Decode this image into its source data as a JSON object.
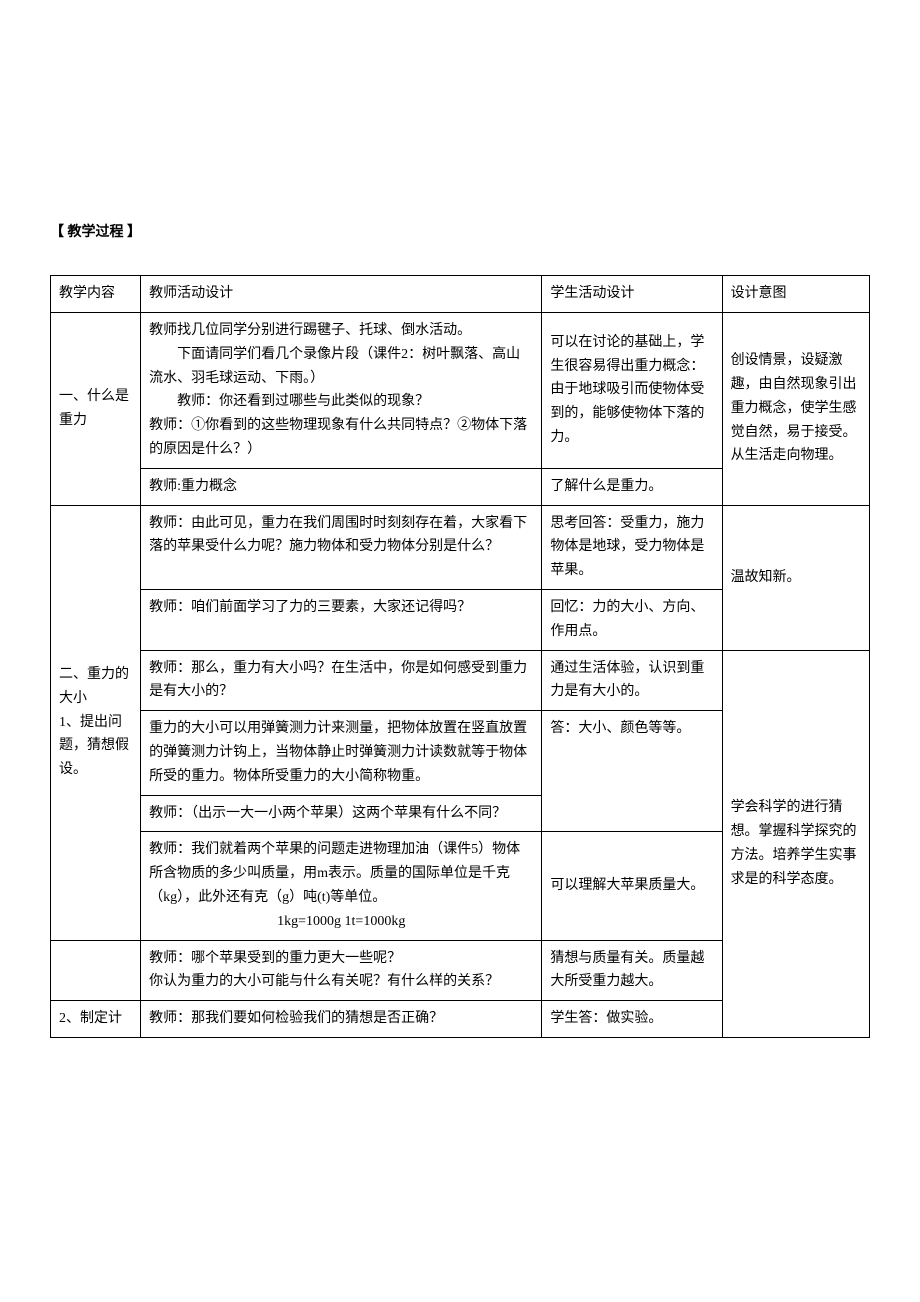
{
  "section_title": "【 教学过程 】",
  "headers": {
    "col1": "教学内容",
    "col2": "教师活动设计",
    "col3": "学生活动设计",
    "col4": "设计意图"
  },
  "row1": {
    "topic": "一、什么是重力",
    "teacher1": "教师找几位同学分别进行踢毽子、托球、倒水活动。",
    "teacher2": "下面请同学们看几个录像片段（课件2：树叶飘落、高山流水、羽毛球运动、下雨。）",
    "teacher3": "教师：你还看到过哪些与此类似的现象？",
    "teacher4": "教师：①你看到的这些物理现象有什么共同特点？②物体下落的原因是什么？）",
    "teacher5": "教师:重力概念",
    "student1": "可以在讨论的基础上，学生很容易得出重力概念：由于地球吸引而使物体受到的，能够使物体下落的力。",
    "student2": "了解什么是重力。",
    "intent": "创设情景，设疑激趣，由自然现象引出重力概念，使学生感觉自然，易于接受。从生活走向物理。"
  },
  "row2": {
    "topic": "二、重力的大小\n1、提出问题，猜想假设。",
    "teacher1": "教师：由此可见，重力在我们周围时时刻刻存在着，大家看下落的苹果受什么力呢？施力物体和受力物体分别是什么？",
    "teacher2": "教师：咱们前面学习了力的三要素，大家还记得吗？",
    "teacher3": "教师：那么，重力有大小吗？在生活中，你是如何感受到重力是有大小的？",
    "teacher4": "重力的大小可以用弹簧测力计来测量，把物体放置在竖直放置的弹簧测力计钩上，当物体静止时弹簧测力计读数就等于物体所受的重力。物体所受重力的大小简称物重。",
    "teacher5": "教师：（出示一大一小两个苹果）这两个苹果有什么不同？",
    "teacher6a": "教师：我们就着两个苹果的问题走进物理加油（课件5）物体所含物质的多少叫质量，用m表示。质量的国际单位是千克（kg），此外还有克（g）吨(t)等单位。",
    "teacher6b": "1kg=1000g          1t=1000kg",
    "teacher7": "教师：哪个苹果受到的重力更大一些呢？\n你认为重力的大小可能与什么有关呢？有什么样的关系？",
    "student1": "思考回答：受重力，施力物体是地球，受力物体是苹果。",
    "student2": "回忆：力的大小、方向、作用点。",
    "student3": "通过生活体验，认识到重力是有大小的。",
    "student5": "答：大小、颜色等等。",
    "student6": "可以理解大苹果质量大。",
    "student7": "猜想与质量有关。质量越大所受重力越大。",
    "intent1": "温故知新。",
    "intent2": "学会科学的进行猜想。掌握科学探究的方法。培养学生实事求是的科学态度。"
  },
  "row3": {
    "topic": "2、制定计",
    "teacher": "教师：那我们要如何检验我们的猜想是否正确？",
    "student": "学生答：做实验。"
  }
}
